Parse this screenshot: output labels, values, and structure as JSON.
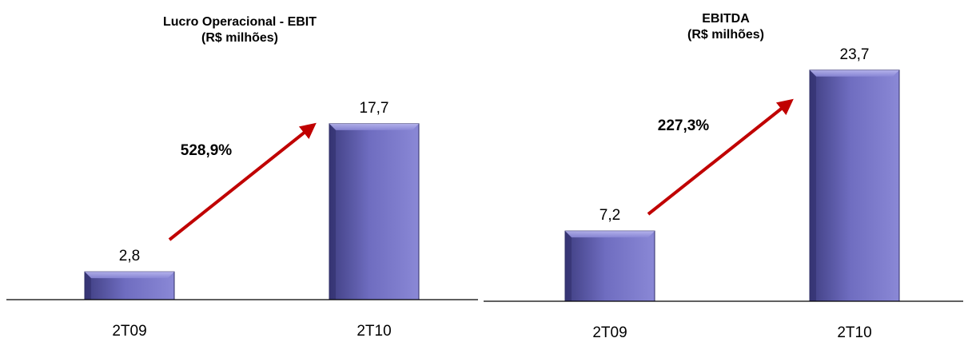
{
  "colors": {
    "bar_light": "#8a88d6",
    "bar_mid": "#6f6dc0",
    "bar_dark": "#3f3e82",
    "arrow": "#c00000",
    "axis": "#000000"
  },
  "chart_data": [
    {
      "type": "bar",
      "title": "Lucro Operacional - EBIT",
      "subtitle": "(R$ milhões)",
      "categories": [
        "2T09",
        "2T10"
      ],
      "values": [
        2.8,
        17.7
      ],
      "value_labels": [
        "2,8",
        "17,7"
      ],
      "growth_label": "528,9%",
      "ylim": [
        0,
        19.7
      ],
      "grid": false,
      "legend": "none"
    },
    {
      "type": "bar",
      "title": "EBITDA",
      "subtitle": "(R$ milhões)",
      "categories": [
        "2T09",
        "2T10"
      ],
      "values": [
        7.2,
        23.7
      ],
      "value_labels": [
        "7,2",
        "23,7"
      ],
      "growth_label": "227,3%",
      "ylim": [
        0,
        24.5
      ],
      "grid": false,
      "legend": "none"
    }
  ]
}
